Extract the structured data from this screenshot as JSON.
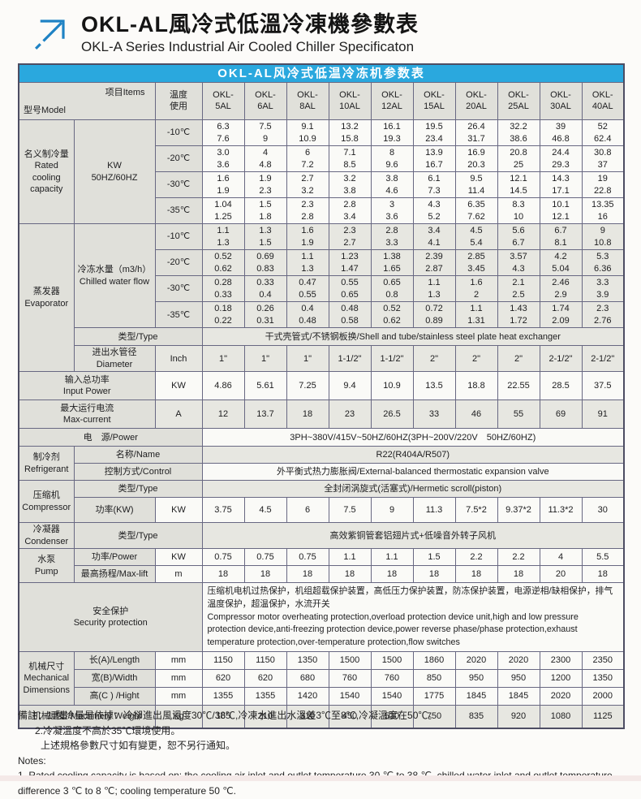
{
  "page": {
    "title_zh": "OKL-AL風冷式低溫冷凍機參數表",
    "title_en": "OKL-A Series Industrial Air Cooled Chiller Specificaton"
  },
  "table": {
    "title": "OKL-AL风冷式低温冷冻机参数表",
    "corner_model": "型号Model",
    "corner_items": "项目Items",
    "temp_head": "温度\n使用",
    "models": [
      "OKL-\n5AL",
      "OKL-\n6AL",
      "OKL-\n8AL",
      "OKL-\n10AL",
      "OKL-\n12AL",
      "OKL-\n15AL",
      "OKL-\n20AL",
      "OKL-\n25AL",
      "OKL-\n30AL",
      "OKL-\n40AL"
    ]
  },
  "cap": {
    "label": "名义制冷量\nRated\ncooling\ncapacity",
    "unit": "KW\n50HZ/60HZ",
    "rows": [
      {
        "temp": "-10℃",
        "v": [
          "6.3\n7.6",
          "7.5\n9",
          "9.1\n10.9",
          "13.2\n15.8",
          "16.1\n19.3",
          "19.5\n23.4",
          "26.4\n31.7",
          "32.2\n38.6",
          "39\n46.8",
          "52\n62.4"
        ]
      },
      {
        "temp": "-20℃",
        "v": [
          "3.0\n3.6",
          "4\n4.8",
          "6\n7.2",
          "7.1\n8.5",
          "8\n9.6",
          "13.9\n16.7",
          "16.9\n20.3",
          "20.8\n25",
          "24.4\n29.3",
          "30.8\n37"
        ]
      },
      {
        "temp": "-30℃",
        "v": [
          "1.6\n1.9",
          "1.9\n2.3",
          "2.7\n3.2",
          "3.2\n3.8",
          "3.8\n4.6",
          "6.1\n7.3",
          "9.5\n11.4",
          "12.1\n14.5",
          "14.3\n17.1",
          "19\n22.8"
        ]
      },
      {
        "temp": "-35℃",
        "v": [
          "1.04\n1.25",
          "1.5\n1.8",
          "2.3\n2.8",
          "2.8\n3.4",
          "3\n3.6",
          "4.3\n5.2",
          "6.35\n7.62",
          "8.3\n10",
          "10.1\n12.1",
          "13.35\n16"
        ]
      }
    ]
  },
  "evap": {
    "label": "蒸发器\nEvaporator",
    "flow_label": "冷冻水量（m3/h）\nChilled water flow",
    "rows": [
      {
        "temp": "-10℃",
        "v": [
          "1.1\n1.3",
          "1.3\n1.5",
          "1.6\n1.9",
          "2.3\n2.7",
          "2.8\n3.3",
          "3.4\n4.1",
          "4.5\n5.4",
          "5.6\n6.7",
          "6.7\n8.1",
          "9\n10.8"
        ]
      },
      {
        "temp": "-20℃",
        "v": [
          "0.52\n0.62",
          "0.69\n0.83",
          "1.1\n1.3",
          "1.23\n1.47",
          "1.38\n1.65",
          "2.39\n2.87",
          "2.85\n3.45",
          "3.57\n4.3",
          "4.2\n5.04",
          "5.3\n6.36"
        ]
      },
      {
        "temp": "-30℃",
        "v": [
          "0.28\n0.33",
          "0.33\n0.4",
          "0.47\n0.55",
          "0.55\n0.65",
          "0.65\n0.8",
          "1.1\n1.3",
          "1.6\n2",
          "2.1\n2.5",
          "2.46\n2.9",
          "3.3\n3.9"
        ]
      },
      {
        "temp": "-35℃",
        "v": [
          "0.18\n0.22",
          "0.26\n0.31",
          "0.4\n0.48",
          "0.48\n0.58",
          "0.52\n0.62",
          "0.72\n0.89",
          "1.1\n1.31",
          "1.43\n1.72",
          "1.74\n2.09",
          "2.3\n2.76"
        ]
      }
    ],
    "type_label": "类型/Type",
    "type_value": "干式壳管式/不锈钢板换/Shell and tube/stainless steel plate heat exchanger",
    "pipe_label": "进出水管径\nDiameter",
    "pipe_unit": "Inch",
    "pipe": [
      "1\"",
      "1\"",
      "1\"",
      "1-1/2\"",
      "1-1/2\"",
      "2\"",
      "2\"",
      "2\"",
      "2-1/2\"",
      "2-1/2\""
    ]
  },
  "input_power": {
    "label": "输入总功率\nInput Power",
    "unit": "KW",
    "v": [
      "4.86",
      "5.61",
      "7.25",
      "9.4",
      "10.9",
      "13.5",
      "18.8",
      "22.55",
      "28.5",
      "37.5"
    ]
  },
  "max_current": {
    "label": "最大运行电流\nMax-current",
    "unit": "A",
    "v": [
      "12",
      "13.7",
      "18",
      "23",
      "26.5",
      "33",
      "46",
      "55",
      "69",
      "91"
    ]
  },
  "power_supply": {
    "label": "电　源/Power",
    "value": "3PH~380V/415V~50HZ/60HZ(3PH~200V/220V　50HZ/60HZ)"
  },
  "refrigerant": {
    "label": "制冷剂\nRefrigerant",
    "name_label": "名称/Name",
    "name_value": "R22(R404A/R507)",
    "control_label": "控制方式/Control",
    "control_value": "外平衡式热力膨胀阀/External-balanced thermostatic expansion valve"
  },
  "compressor": {
    "label": "压缩机\nCompressor",
    "type_label": "类型/Type",
    "type_value": "全封闭涡旋式(活塞式)/Hermetic scroll(piston)",
    "power_label": "功率(KW)",
    "power_unit": "KW",
    "power": [
      "3.75",
      "4.5",
      "6",
      "7.5",
      "9",
      "11.3",
      "7.5*2",
      "9.37*2",
      "11.3*2",
      "30"
    ]
  },
  "condenser": {
    "label": "冷凝器\nCondenser",
    "type_label": "类型/Type",
    "type_value": "高效紫铜管套铝翅片式+低噪音外转子风机"
  },
  "pump": {
    "label": "水泵\nPump",
    "power_label": "功率/Power",
    "power_unit": "KW",
    "power": [
      "0.75",
      "0.75",
      "0.75",
      "1.1",
      "1.1",
      "1.5",
      "2.2",
      "2.2",
      "4",
      "5.5"
    ],
    "lift_label": "最高扬程/Max-lift",
    "lift_unit": "m",
    "lift": [
      "18",
      "18",
      "18",
      "18",
      "18",
      "18",
      "18",
      "18",
      "20",
      "18"
    ]
  },
  "security": {
    "label": "安全保护\nSecurity protection",
    "value_zh": "压缩机电机过热保护，机组超载保护装置，高低压力保护装置，防冻保护装置，电源逆相/缺相保护，排气温度保护，超温保护，水流开关",
    "value_en": "Compressor motor overheating protection,overload protection device unit,high and low pressure protection device,anti-freezing protection device,power reverse phase/phase protection,exhaust temperature protection,over-temperature protection,flow switches"
  },
  "dimensions": {
    "label": "机械尺寸\nMechanical\nDimensions",
    "length_label": "长(A)/Length",
    "length_unit": "mm",
    "length": [
      "1150",
      "1150",
      "1350",
      "1500",
      "1500",
      "1860",
      "2020",
      "2020",
      "2300",
      "2350"
    ],
    "width_label": "宽(B)/Width",
    "width_unit": "mm",
    "width": [
      "620",
      "620",
      "680",
      "760",
      "760",
      "850",
      "950",
      "950",
      "1200",
      "1350"
    ],
    "height_label": "高(C ) /Hight",
    "height_unit": "mm",
    "height": [
      "1355",
      "1355",
      "1420",
      "1540",
      "1540",
      "1775",
      "1845",
      "1845",
      "2020",
      "2000"
    ]
  },
  "weight": {
    "label": "机械重量/Machinery Weight",
    "unit": "Kg",
    "v": [
      "165",
      "210",
      "310",
      "450",
      "530",
      "750",
      "835",
      "920",
      "1080",
      "1125"
    ]
  },
  "notes": {
    "zh1": "備註：1.製冷量是依據：冷卻進出風溫度30℃/38℃,冷凍水進出水溫差3℃至8℃,冷凝溫度在50℃。",
    "zh2": "2.冷凝溫度不高於35℃環境使用。",
    "zh3": "上述規格參數尺寸如有變更，恕不另行通知。",
    "en_head": "Notes:",
    "en1": "1. Rated cooling capacity is based on: the cooling air inlet and outlet temperature 30 ℃ to 38 ℃, chilled water inlet and outlet temperature difference 3 ℃ to 8 ℃; cooling temperature 50 ℃."
  },
  "colors": {
    "accent_blue": "#2aa8de",
    "logo_blue": "#1e82c4"
  }
}
